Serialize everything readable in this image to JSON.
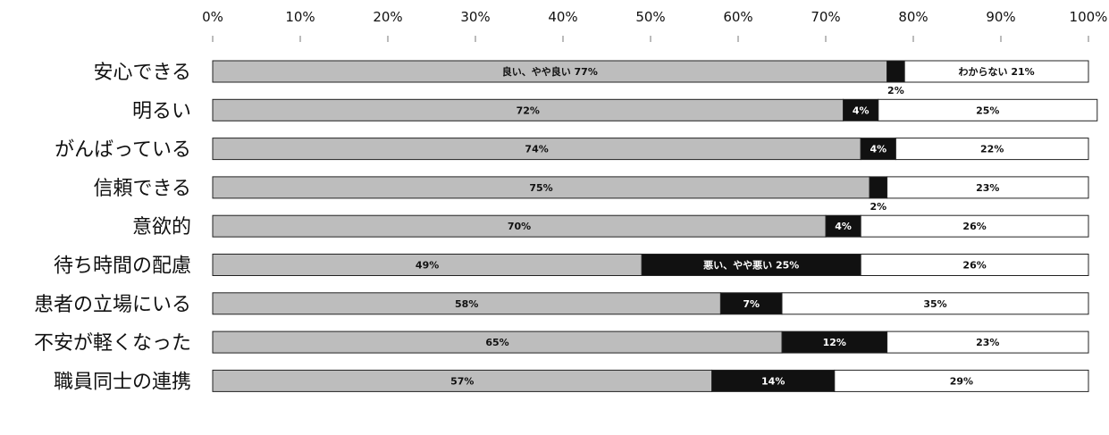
{
  "chart_data": {
    "type": "bar",
    "orientation": "horizontal",
    "stacked": true,
    "percent_stacked": true,
    "categories": [
      "安心できる",
      "明るい",
      "がんばっている",
      "信頼できる",
      "意欲的",
      "待ち時間の配慮",
      "患者の立場にいる",
      "不安が軽くなった",
      "職員同士の連携"
    ],
    "series": [
      {
        "name": "良い、やや良い",
        "color": "#bdbdbd",
        "values": [
          77,
          72,
          74,
          75,
          70,
          49,
          58,
          65,
          57
        ],
        "labels": [
          "良い、やや良い 77%",
          "72%",
          "74%",
          "75%",
          "70%",
          "49%",
          "58%",
          "65%",
          "57%"
        ]
      },
      {
        "name": "悪い、やや悪い",
        "color": "#111111",
        "values": [
          2,
          4,
          4,
          2,
          4,
          25,
          7,
          12,
          14
        ],
        "labels": [
          "2%",
          "4%",
          "4%",
          "2%",
          "4%",
          "悪い、やや悪い 25%",
          "7%",
          "12%",
          "14%"
        ]
      },
      {
        "name": "わからない",
        "color": "#ffffff",
        "values": [
          21,
          25,
          22,
          23,
          26,
          26,
          35,
          23,
          29
        ],
        "labels": [
          "わからない 21%",
          "25%",
          "22%",
          "23%",
          "26%",
          "26%",
          "35%",
          "23%",
          "29%"
        ]
      }
    ],
    "xlim": [
      0,
      100
    ],
    "x_ticks": [
      "0%",
      "10%",
      "20%",
      "30%",
      "40%",
      "50%",
      "60%",
      "70%",
      "80%",
      "90%",
      "100%"
    ],
    "grid": false,
    "legend": "none"
  }
}
